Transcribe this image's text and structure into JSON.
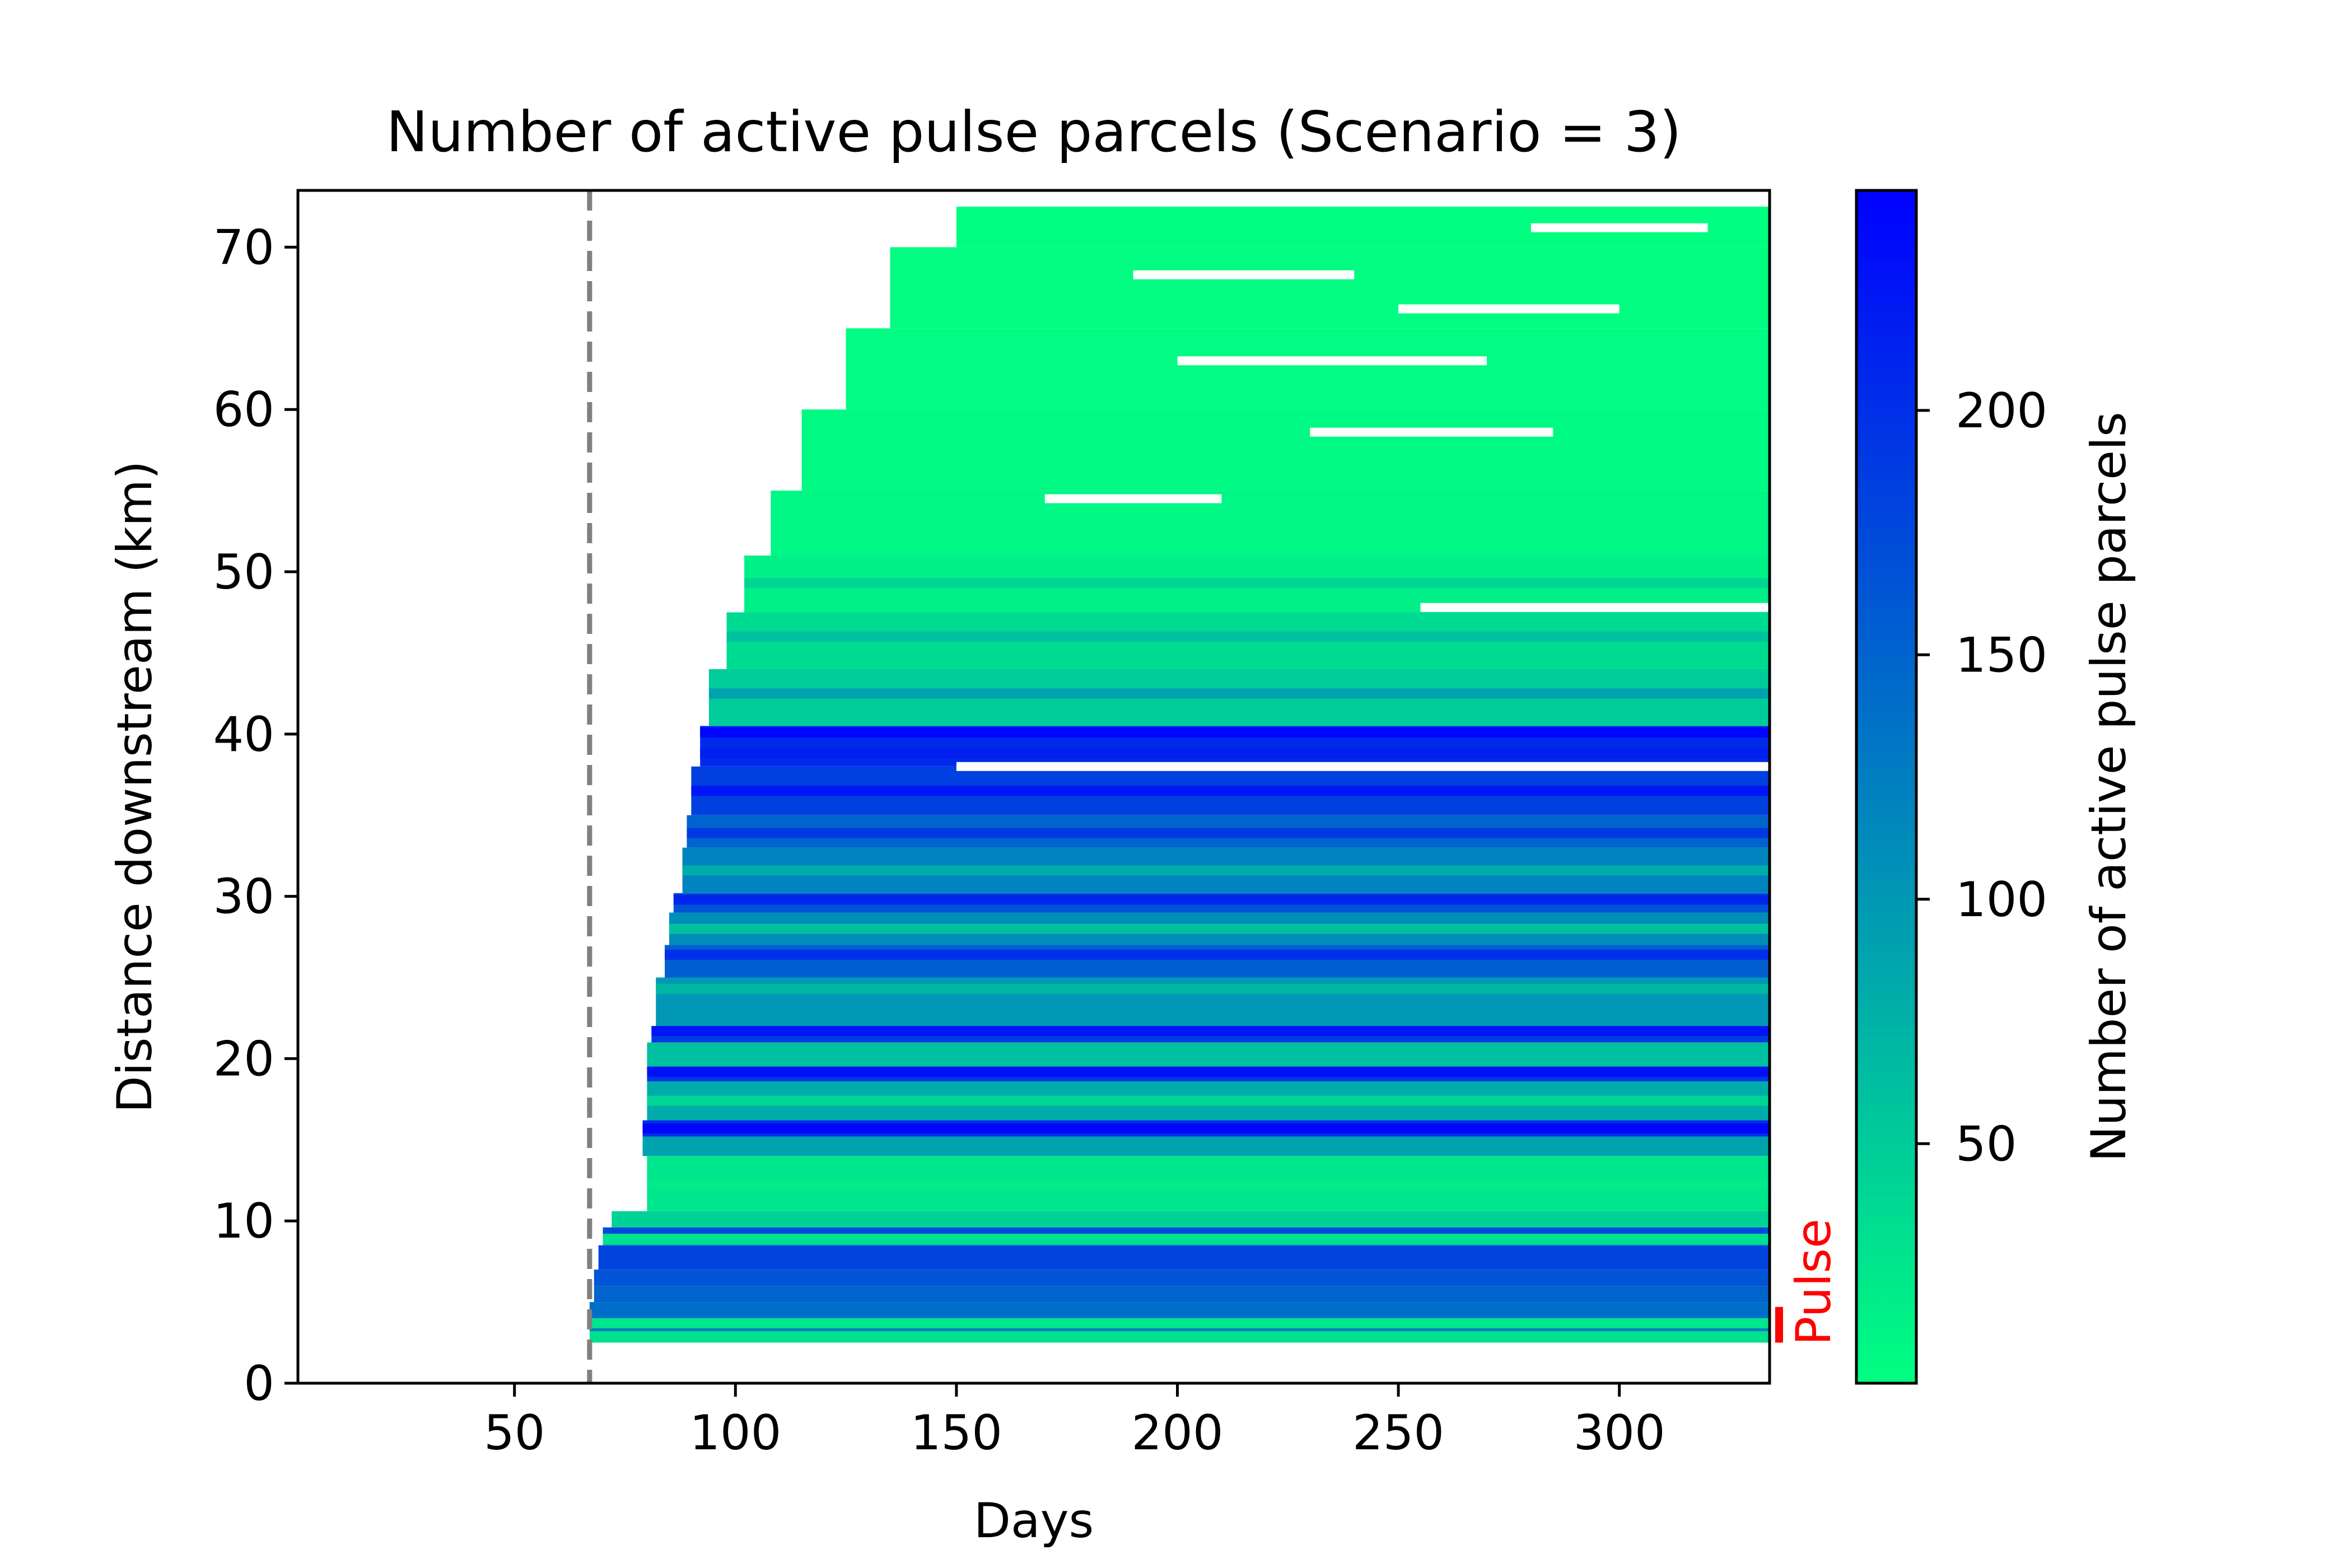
{
  "chart_data": {
    "type": "heatmap",
    "title": "Number of active pulse parcels (Scenario = 3)",
    "xlabel": "Days",
    "ylabel": "Distance downstream (km)",
    "xlim": [
      1,
      334
    ],
    "ylim": [
      0,
      73.5
    ],
    "xticks": [
      50,
      100,
      150,
      200,
      250,
      300
    ],
    "yticks": [
      0,
      10,
      20,
      30,
      40,
      50,
      60,
      70
    ],
    "pulse_day": 67,
    "pulse_label": "Pulse",
    "pulse_reach_km": [
      2.5,
      4.7
    ],
    "colorbar": {
      "label": "Number of active pulse parcels",
      "range": [
        1,
        245
      ],
      "ticks": [
        50,
        100,
        150,
        200
      ],
      "colors": {
        "low": "#00FF80",
        "high": "#0000FF"
      }
    },
    "colors": {
      "pulse_marker": "#FF0000",
      "pulse_line": "#808080"
    },
    "bands": [
      {
        "y0": 2.5,
        "y1": 3.2,
        "start": 67,
        "value": 30
      },
      {
        "y0": 3.2,
        "y1": 4.0,
        "start": 67,
        "value": 120
      },
      {
        "y0": 4.0,
        "y1": 5.0,
        "start": 67,
        "value": 140
      },
      {
        "y0": 5.0,
        "y1": 6.0,
        "start": 68,
        "value": 150
      },
      {
        "y0": 6.0,
        "y1": 7.0,
        "start": 68,
        "value": 165
      },
      {
        "y0": 7.0,
        "y1": 8.5,
        "start": 69,
        "value": 180
      },
      {
        "y0": 8.5,
        "y1": 9.0,
        "start": 70,
        "value": 60
      },
      {
        "y0": 9.0,
        "y1": 9.6,
        "start": 70,
        "value": 175
      },
      {
        "y0": 9.6,
        "y1": 10.6,
        "start": 72,
        "value": 45
      },
      {
        "y0": 10.6,
        "y1": 14.0,
        "start": 80,
        "value": 25
      },
      {
        "y0": 14.0,
        "y1": 15.2,
        "start": 79,
        "value": 90
      },
      {
        "y0": 15.2,
        "y1": 16.2,
        "start": 79,
        "value": 200
      },
      {
        "y0": 16.2,
        "y1": 18.6,
        "start": 80,
        "value": 80
      },
      {
        "y0": 18.6,
        "y1": 19.5,
        "start": 80,
        "value": 195
      },
      {
        "y0": 19.5,
        "y1": 21.0,
        "start": 80,
        "value": 60
      },
      {
        "y0": 21.0,
        "y1": 22.0,
        "start": 81,
        "value": 190
      },
      {
        "y0": 22.0,
        "y1": 25.0,
        "start": 82,
        "value": 100
      },
      {
        "y0": 25.0,
        "y1": 27.0,
        "start": 84,
        "value": 155
      },
      {
        "y0": 27.0,
        "y1": 29.0,
        "start": 85,
        "value": 110
      },
      {
        "y0": 29.0,
        "y1": 30.2,
        "start": 86,
        "value": 165
      },
      {
        "y0": 30.2,
        "y1": 33.0,
        "start": 88,
        "value": 120
      },
      {
        "y0": 33.0,
        "y1": 35.0,
        "start": 89,
        "value": 150
      },
      {
        "y0": 35.0,
        "y1": 38.0,
        "start": 90,
        "value": 185
      },
      {
        "y0": 38.0,
        "y1": 40.5,
        "start": 92,
        "value": 205
      },
      {
        "y0": 40.5,
        "y1": 44.0,
        "start": 94,
        "value": 50
      },
      {
        "y0": 44.0,
        "y1": 47.5,
        "start": 98,
        "value": 35
      },
      {
        "y0": 47.5,
        "y1": 51.0,
        "start": 102,
        "value": 15
      },
      {
        "y0": 51.0,
        "y1": 55.0,
        "start": 108,
        "value": 10
      },
      {
        "y0": 55.0,
        "y1": 60.0,
        "start": 115,
        "value": 6
      },
      {
        "y0": 60.0,
        "y1": 65.0,
        "start": 125,
        "value": 4
      },
      {
        "y0": 65.0,
        "y1": 70.0,
        "start": 135,
        "value": 3
      },
      {
        "y0": 70.0,
        "y1": 72.5,
        "start": 150,
        "value": 2
      }
    ],
    "stripes": [
      {
        "y": 3.7,
        "value": 25
      },
      {
        "y": 8.9,
        "value": 30
      },
      {
        "y": 12.2,
        "value": 20
      },
      {
        "y": 17.4,
        "value": 40
      },
      {
        "y": 19.2,
        "value": 230
      },
      {
        "y": 15.7,
        "value": 240
      },
      {
        "y": 21.7,
        "value": 225
      },
      {
        "y": 24.3,
        "value": 70
      },
      {
        "y": 26.4,
        "value": 200
      },
      {
        "y": 28.0,
        "value": 60
      },
      {
        "y": 29.8,
        "value": 210
      },
      {
        "y": 31.6,
        "value": 80
      },
      {
        "y": 33.9,
        "value": 190
      },
      {
        "y": 36.5,
        "value": 225
      },
      {
        "y": 38.8,
        "value": 215
      },
      {
        "y": 40.1,
        "value": 240
      },
      {
        "y": 42.5,
        "value": 90
      },
      {
        "y": 46.0,
        "value": 60
      },
      {
        "y": 49.3,
        "value": 40
      }
    ],
    "gaps": [
      {
        "y": 38.0,
        "x0": 150,
        "x1": 334
      },
      {
        "y": 47.8,
        "x0": 255,
        "x1": 334
      },
      {
        "y": 54.5,
        "x0": 170,
        "x1": 210
      },
      {
        "y": 58.6,
        "x0": 230,
        "x1": 285
      },
      {
        "y": 63.0,
        "x0": 200,
        "x1": 270
      },
      {
        "y": 66.2,
        "x0": 250,
        "x1": 300
      },
      {
        "y": 68.3,
        "x0": 190,
        "x1": 240
      },
      {
        "y": 71.2,
        "x0": 280,
        "x1": 320
      }
    ]
  }
}
